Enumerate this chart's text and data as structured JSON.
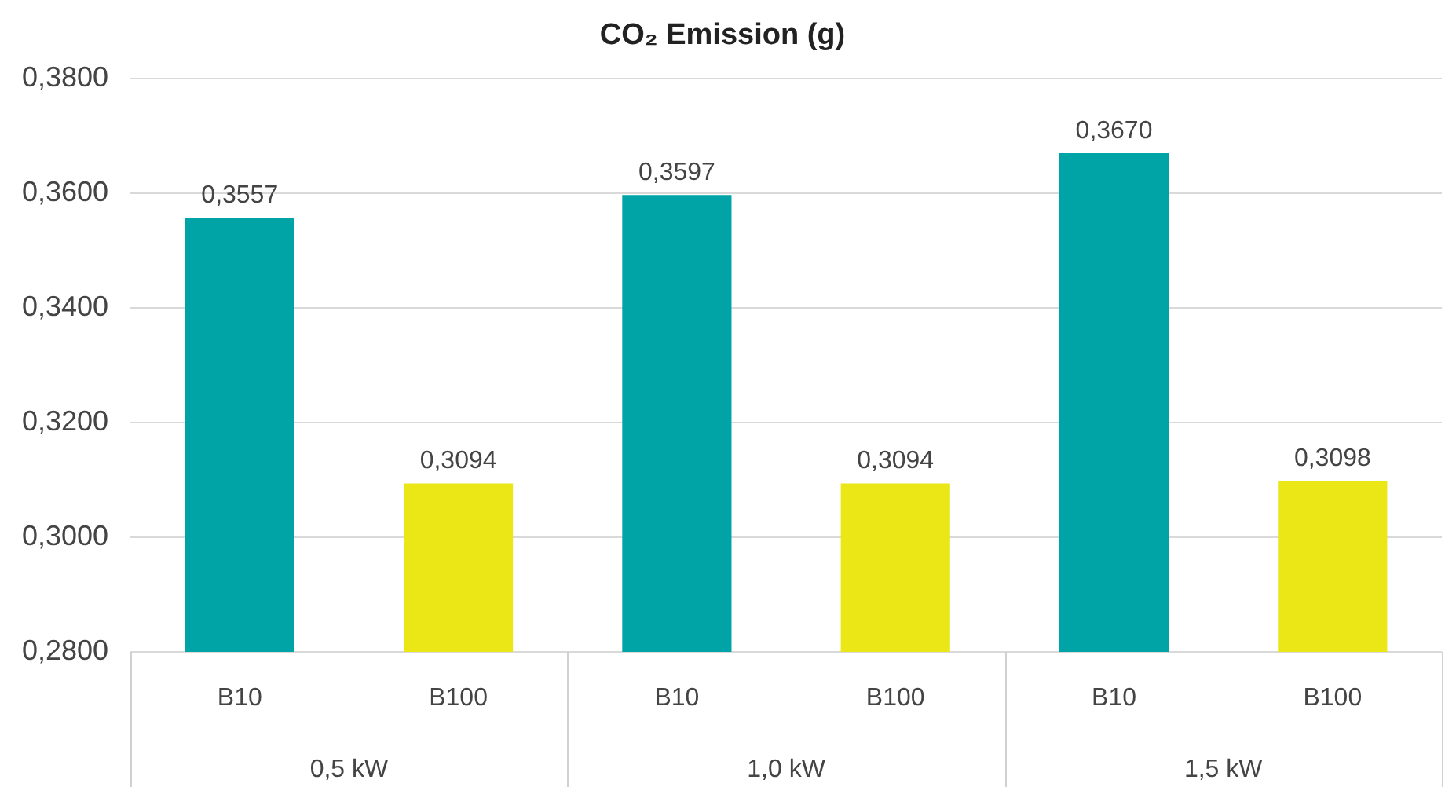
{
  "chart_data": {
    "type": "bar",
    "title": "CO₂ Emission (g)",
    "categories": [
      "B10",
      "B100",
      "B10",
      "B100",
      "B10",
      "B100"
    ],
    "values": [
      0.3557,
      0.3094,
      0.3597,
      0.3094,
      0.367,
      0.3098
    ],
    "colors": [
      "#00a3a6",
      "#ebe615",
      "#00a3a6",
      "#ebe615",
      "#00a3a6",
      "#ebe615"
    ],
    "value_labels": [
      "0,3557",
      "0,3094",
      "0,3597",
      "0,3094",
      "0,3670",
      "0,3098"
    ],
    "annotations": [
      "0,5 kW",
      "1,0 kW",
      "1,5 kW"
    ],
    "ylim": [
      0.28,
      0.38
    ],
    "yticks": [
      {
        "value": 0.28,
        "label": "0,2800"
      },
      {
        "value": 0.3,
        "label": "0,3000"
      },
      {
        "value": 0.32,
        "label": "0,3200"
      },
      {
        "value": 0.34,
        "label": "0,3400"
      },
      {
        "value": 0.36,
        "label": "0,3600"
      },
      {
        "value": 0.38,
        "label": "0,3800"
      }
    ],
    "grid": "y",
    "legend": false
  }
}
